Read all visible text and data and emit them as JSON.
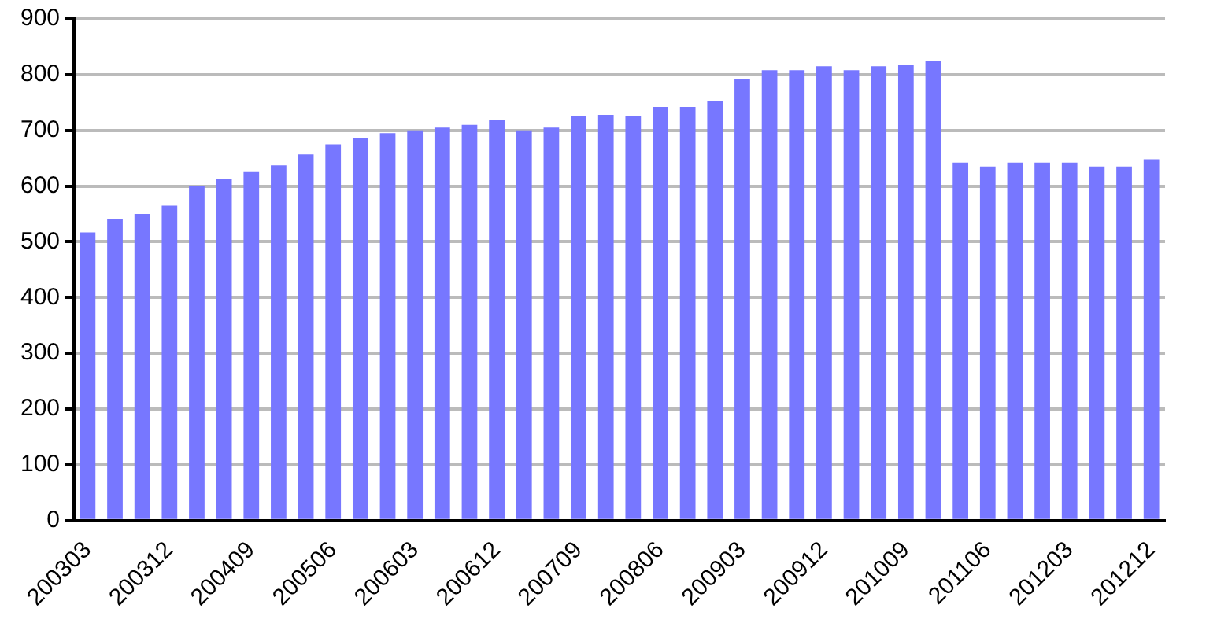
{
  "chart_data": {
    "type": "bar",
    "categories": [
      "200303",
      null,
      null,
      "200312",
      null,
      null,
      "200409",
      null,
      null,
      "200506",
      null,
      null,
      "200603",
      null,
      null,
      "200612",
      null,
      null,
      "200709",
      null,
      null,
      "200806",
      null,
      null,
      "200903",
      null,
      null,
      "200912",
      null,
      null,
      "201009",
      null,
      null,
      "201106",
      null,
      null,
      "201203",
      null,
      null,
      "201212"
    ],
    "values": [
      517,
      540,
      550,
      565,
      600,
      612,
      625,
      637,
      657,
      675,
      687,
      695,
      700,
      705,
      710,
      718,
      700,
      705,
      725,
      728,
      725,
      742,
      742,
      752,
      792,
      808,
      808,
      815,
      808,
      815,
      818,
      825,
      642,
      635,
      642,
      642,
      642,
      635,
      635,
      648
    ],
    "color": "#7777ff",
    "ylim": [
      0,
      900
    ],
    "yticks": [
      0,
      100,
      200,
      300,
      400,
      500,
      600,
      700,
      800,
      900
    ],
    "grid": "y",
    "legend": false
  }
}
